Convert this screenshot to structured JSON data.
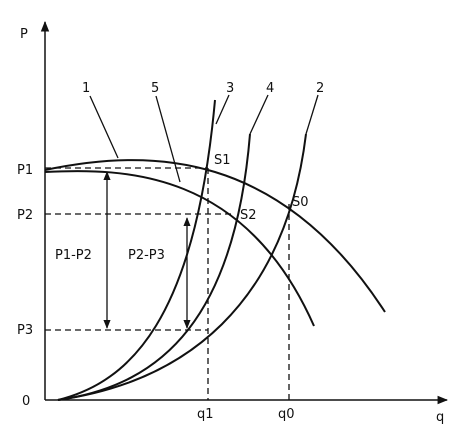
{
  "axes": {
    "y_label": "P",
    "x_label": "q",
    "origin_label": "0"
  },
  "y_ticks": [
    "P1",
    "P2",
    "P3"
  ],
  "x_ticks": [
    "q1",
    "q0"
  ],
  "curve_labels": [
    "1",
    "5",
    "3",
    "4",
    "2"
  ],
  "points": [
    "S1",
    "S2",
    "S0"
  ],
  "differences": [
    "P1-P2",
    "P2-P3"
  ]
}
